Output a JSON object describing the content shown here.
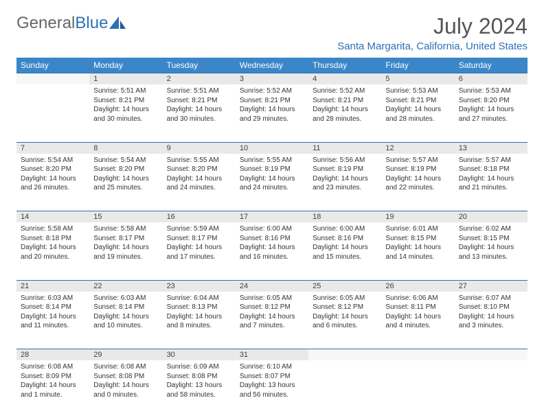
{
  "logo": {
    "part1": "General",
    "part2": "Blue"
  },
  "title": "July 2024",
  "location": "Santa Margarita, California, United States",
  "weekdays": [
    "Sunday",
    "Monday",
    "Tuesday",
    "Wednesday",
    "Thursday",
    "Friday",
    "Saturday"
  ],
  "colors": {
    "header_bg": "#3a86c8",
    "header_text": "#ffffff",
    "accent": "#2a71b8",
    "daynum_bg": "#e9e9e9",
    "text": "#333333"
  },
  "weeks": [
    {
      "nums": [
        "",
        "1",
        "2",
        "3",
        "4",
        "5",
        "6"
      ],
      "cells": [
        {
          "empty": true
        },
        {
          "sunrise": "Sunrise: 5:51 AM",
          "sunset": "Sunset: 8:21 PM",
          "day1": "Daylight: 14 hours",
          "day2": "and 30 minutes."
        },
        {
          "sunrise": "Sunrise: 5:51 AM",
          "sunset": "Sunset: 8:21 PM",
          "day1": "Daylight: 14 hours",
          "day2": "and 30 minutes."
        },
        {
          "sunrise": "Sunrise: 5:52 AM",
          "sunset": "Sunset: 8:21 PM",
          "day1": "Daylight: 14 hours",
          "day2": "and 29 minutes."
        },
        {
          "sunrise": "Sunrise: 5:52 AM",
          "sunset": "Sunset: 8:21 PM",
          "day1": "Daylight: 14 hours",
          "day2": "and 28 minutes."
        },
        {
          "sunrise": "Sunrise: 5:53 AM",
          "sunset": "Sunset: 8:21 PM",
          "day1": "Daylight: 14 hours",
          "day2": "and 28 minutes."
        },
        {
          "sunrise": "Sunrise: 5:53 AM",
          "sunset": "Sunset: 8:20 PM",
          "day1": "Daylight: 14 hours",
          "day2": "and 27 minutes."
        }
      ]
    },
    {
      "nums": [
        "7",
        "8",
        "9",
        "10",
        "11",
        "12",
        "13"
      ],
      "cells": [
        {
          "sunrise": "Sunrise: 5:54 AM",
          "sunset": "Sunset: 8:20 PM",
          "day1": "Daylight: 14 hours",
          "day2": "and 26 minutes."
        },
        {
          "sunrise": "Sunrise: 5:54 AM",
          "sunset": "Sunset: 8:20 PM",
          "day1": "Daylight: 14 hours",
          "day2": "and 25 minutes."
        },
        {
          "sunrise": "Sunrise: 5:55 AM",
          "sunset": "Sunset: 8:20 PM",
          "day1": "Daylight: 14 hours",
          "day2": "and 24 minutes."
        },
        {
          "sunrise": "Sunrise: 5:55 AM",
          "sunset": "Sunset: 8:19 PM",
          "day1": "Daylight: 14 hours",
          "day2": "and 24 minutes."
        },
        {
          "sunrise": "Sunrise: 5:56 AM",
          "sunset": "Sunset: 8:19 PM",
          "day1": "Daylight: 14 hours",
          "day2": "and 23 minutes."
        },
        {
          "sunrise": "Sunrise: 5:57 AM",
          "sunset": "Sunset: 8:19 PM",
          "day1": "Daylight: 14 hours",
          "day2": "and 22 minutes."
        },
        {
          "sunrise": "Sunrise: 5:57 AM",
          "sunset": "Sunset: 8:18 PM",
          "day1": "Daylight: 14 hours",
          "day2": "and 21 minutes."
        }
      ]
    },
    {
      "nums": [
        "14",
        "15",
        "16",
        "17",
        "18",
        "19",
        "20"
      ],
      "cells": [
        {
          "sunrise": "Sunrise: 5:58 AM",
          "sunset": "Sunset: 8:18 PM",
          "day1": "Daylight: 14 hours",
          "day2": "and 20 minutes."
        },
        {
          "sunrise": "Sunrise: 5:58 AM",
          "sunset": "Sunset: 8:17 PM",
          "day1": "Daylight: 14 hours",
          "day2": "and 19 minutes."
        },
        {
          "sunrise": "Sunrise: 5:59 AM",
          "sunset": "Sunset: 8:17 PM",
          "day1": "Daylight: 14 hours",
          "day2": "and 17 minutes."
        },
        {
          "sunrise": "Sunrise: 6:00 AM",
          "sunset": "Sunset: 8:16 PM",
          "day1": "Daylight: 14 hours",
          "day2": "and 16 minutes."
        },
        {
          "sunrise": "Sunrise: 6:00 AM",
          "sunset": "Sunset: 8:16 PM",
          "day1": "Daylight: 14 hours",
          "day2": "and 15 minutes."
        },
        {
          "sunrise": "Sunrise: 6:01 AM",
          "sunset": "Sunset: 8:15 PM",
          "day1": "Daylight: 14 hours",
          "day2": "and 14 minutes."
        },
        {
          "sunrise": "Sunrise: 6:02 AM",
          "sunset": "Sunset: 8:15 PM",
          "day1": "Daylight: 14 hours",
          "day2": "and 13 minutes."
        }
      ]
    },
    {
      "nums": [
        "21",
        "22",
        "23",
        "24",
        "25",
        "26",
        "27"
      ],
      "cells": [
        {
          "sunrise": "Sunrise: 6:03 AM",
          "sunset": "Sunset: 8:14 PM",
          "day1": "Daylight: 14 hours",
          "day2": "and 11 minutes."
        },
        {
          "sunrise": "Sunrise: 6:03 AM",
          "sunset": "Sunset: 8:14 PM",
          "day1": "Daylight: 14 hours",
          "day2": "and 10 minutes."
        },
        {
          "sunrise": "Sunrise: 6:04 AM",
          "sunset": "Sunset: 8:13 PM",
          "day1": "Daylight: 14 hours",
          "day2": "and 8 minutes."
        },
        {
          "sunrise": "Sunrise: 6:05 AM",
          "sunset": "Sunset: 8:12 PM",
          "day1": "Daylight: 14 hours",
          "day2": "and 7 minutes."
        },
        {
          "sunrise": "Sunrise: 6:05 AM",
          "sunset": "Sunset: 8:12 PM",
          "day1": "Daylight: 14 hours",
          "day2": "and 6 minutes."
        },
        {
          "sunrise": "Sunrise: 6:06 AM",
          "sunset": "Sunset: 8:11 PM",
          "day1": "Daylight: 14 hours",
          "day2": "and 4 minutes."
        },
        {
          "sunrise": "Sunrise: 6:07 AM",
          "sunset": "Sunset: 8:10 PM",
          "day1": "Daylight: 14 hours",
          "day2": "and 3 minutes."
        }
      ]
    },
    {
      "nums": [
        "28",
        "29",
        "30",
        "31",
        "",
        "",
        ""
      ],
      "cells": [
        {
          "sunrise": "Sunrise: 6:08 AM",
          "sunset": "Sunset: 8:09 PM",
          "day1": "Daylight: 14 hours",
          "day2": "and 1 minute."
        },
        {
          "sunrise": "Sunrise: 6:08 AM",
          "sunset": "Sunset: 8:08 PM",
          "day1": "Daylight: 14 hours",
          "day2": "and 0 minutes."
        },
        {
          "sunrise": "Sunrise: 6:09 AM",
          "sunset": "Sunset: 8:08 PM",
          "day1": "Daylight: 13 hours",
          "day2": "and 58 minutes."
        },
        {
          "sunrise": "Sunrise: 6:10 AM",
          "sunset": "Sunset: 8:07 PM",
          "day1": "Daylight: 13 hours",
          "day2": "and 56 minutes."
        },
        {
          "empty": true
        },
        {
          "empty": true
        },
        {
          "empty": true
        }
      ]
    }
  ]
}
